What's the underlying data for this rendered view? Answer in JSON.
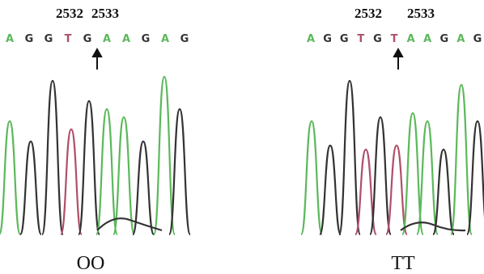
{
  "panels": [
    {
      "positions": [
        "2532",
        "2533"
      ],
      "bases": [
        "A",
        "G",
        "G",
        "T",
        "G",
        "A",
        "A",
        "G",
        "A",
        "G"
      ],
      "label": "OO"
    },
    {
      "positions": [
        "2532",
        "2533"
      ],
      "bases": [
        "A",
        "G",
        "G",
        "T",
        "G",
        "T",
        "A",
        "A",
        "G",
        "A",
        "G"
      ],
      "label": "TT"
    }
  ]
}
